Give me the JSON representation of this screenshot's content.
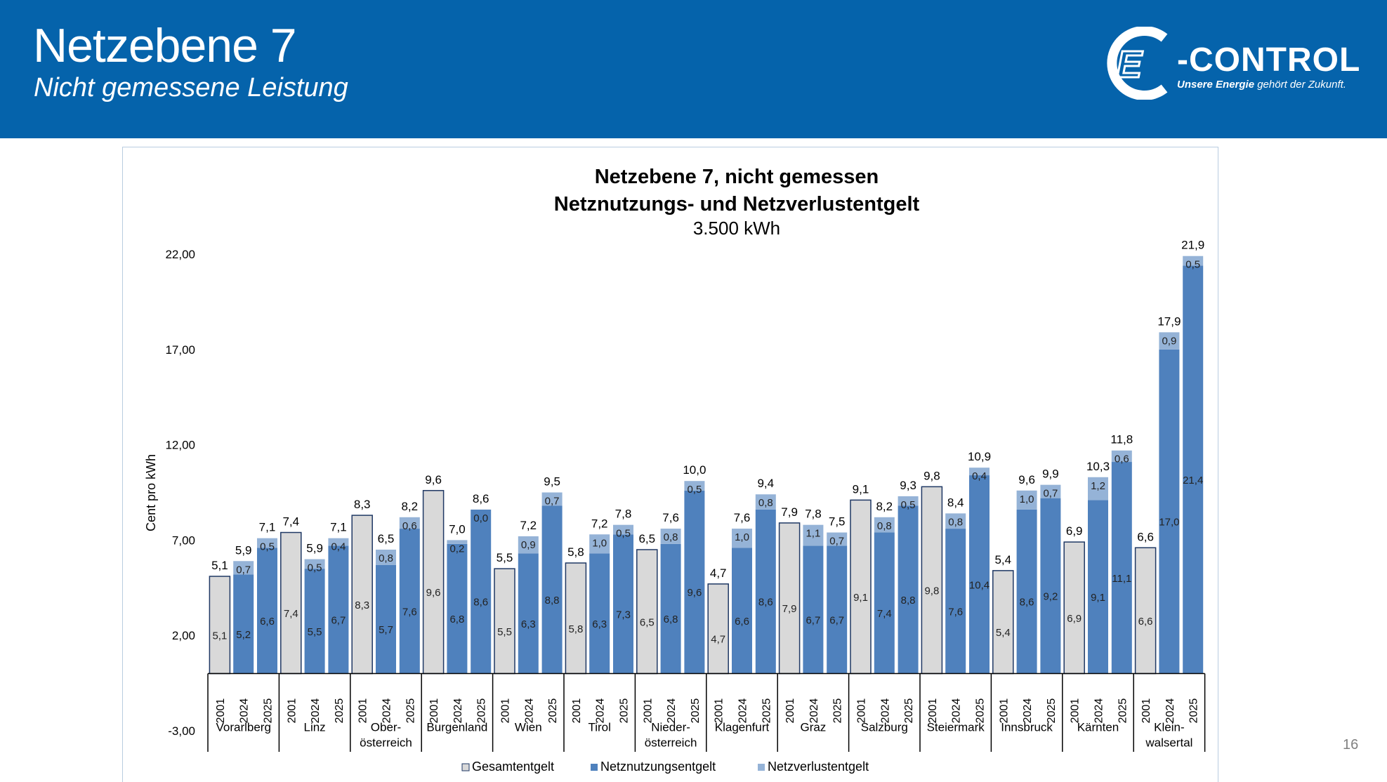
{
  "slide": {
    "title": "Netzebene 7",
    "subtitle": "Nicht gemessene Leistung",
    "page_number": "16"
  },
  "logo": {
    "wordmark": "-CONTROL",
    "letter": "E",
    "slogan_bold": "Unsere Energie",
    "slogan_rest": " gehört der Zukunft."
  },
  "colors": {
    "header_bg": "#0563ab",
    "gesamt": "#d9d9d9",
    "netznutzung": "#4f81bd",
    "netzverlust": "#95b3d7"
  },
  "chart_data": {
    "type": "bar",
    "title": "Netzebene 7, nicht gemessen",
    "title_line2": "Netznutzungs- und Netzverlustentgelt",
    "subtitle": "3.500 kWh",
    "ylabel": "Cent pro kWh",
    "xlabel": "",
    "ylim": [
      -3,
      22
    ],
    "yticks": [
      "22,00",
      "17,00",
      "12,00",
      "7,00",
      "2,00",
      "-3,00"
    ],
    "ytick_values": [
      22,
      17,
      12,
      7,
      2,
      -3
    ],
    "grid": false,
    "legend_position": "bottom",
    "series": [
      {
        "name": "Gesamtentgelt",
        "color": "#d9d9d9"
      },
      {
        "name": "Netznutzungsentgelt",
        "color": "#4f81bd"
      },
      {
        "name": "Netzverlustentgelt",
        "color": "#95b3d7"
      }
    ],
    "groups": [
      {
        "label": [
          "Vorarlberg"
        ],
        "bars": [
          {
            "year": "2001",
            "gesamt": 5.1,
            "gesamt_label": "5,1",
            "total_label": "5,1"
          },
          {
            "year": "2024",
            "netz": 5.2,
            "netz_label": "5,2",
            "verlust": 0.7,
            "verlust_label": "0,7",
            "total_label": "5,9"
          },
          {
            "year": "2025",
            "netz": 6.6,
            "netz_label": "6,6",
            "verlust": 0.5,
            "verlust_label": "0,5",
            "total_label": "7,1"
          }
        ]
      },
      {
        "label": [
          "Linz"
        ],
        "bars": [
          {
            "year": "2001",
            "gesamt": 7.4,
            "gesamt_label": "7,4",
            "total_label": "7,4"
          },
          {
            "year": "2024",
            "netz": 5.5,
            "netz_label": "5,5",
            "verlust": 0.5,
            "verlust_label": "0,5",
            "total_label": "5,9"
          },
          {
            "year": "2025",
            "netz": 6.7,
            "netz_label": "6,7",
            "verlust": 0.4,
            "verlust_label": "0,4",
            "total_label": "7,1"
          }
        ]
      },
      {
        "label": [
          "Ober-",
          "österreich"
        ],
        "bars": [
          {
            "year": "2001",
            "gesamt": 8.3,
            "gesamt_label": "8,3",
            "total_label": "8,3"
          },
          {
            "year": "2024",
            "netz": 5.7,
            "netz_label": "5,7",
            "verlust": 0.8,
            "verlust_label": "0,8",
            "total_label": "6,5"
          },
          {
            "year": "2025",
            "netz": 7.6,
            "netz_label": "7,6",
            "verlust": 0.6,
            "verlust_label": "0,6",
            "total_label": "8,2"
          }
        ]
      },
      {
        "label": [
          "Burgenland"
        ],
        "bars": [
          {
            "year": "2001",
            "gesamt": 9.6,
            "gesamt_label": "9,6",
            "total_label": "9,6"
          },
          {
            "year": "2024",
            "netz": 6.8,
            "netz_label": "6,8",
            "verlust": 0.2,
            "verlust_label": "0,2",
            "total_label": "7,0"
          },
          {
            "year": "2025",
            "netz": 8.6,
            "netz_label": "8,6",
            "verlust": 0.0,
            "verlust_label": "0,0",
            "total_label": "8,6"
          }
        ]
      },
      {
        "label": [
          "Wien"
        ],
        "bars": [
          {
            "year": "2001",
            "gesamt": 5.5,
            "gesamt_label": "5,5",
            "total_label": "5,5"
          },
          {
            "year": "2024",
            "netz": 6.3,
            "netz_label": "6,3",
            "verlust": 0.9,
            "verlust_label": "0,9",
            "total_label": "7,2"
          },
          {
            "year": "2025",
            "netz": 8.8,
            "netz_label": "8,8",
            "verlust": 0.7,
            "verlust_label": "0,7",
            "total_label": "9,5"
          }
        ]
      },
      {
        "label": [
          "Tirol"
        ],
        "bars": [
          {
            "year": "2001",
            "gesamt": 5.8,
            "gesamt_label": "5,8",
            "total_label": "5,8"
          },
          {
            "year": "2024",
            "netz": 6.3,
            "netz_label": "6,3",
            "verlust": 1.0,
            "verlust_label": "1,0",
            "total_label": "7,2"
          },
          {
            "year": "2025",
            "netz": 7.3,
            "netz_label": "7,3",
            "verlust": 0.5,
            "verlust_label": "0,5",
            "total_label": "7,8"
          }
        ]
      },
      {
        "label": [
          "Nieder-",
          "österreich"
        ],
        "bars": [
          {
            "year": "2001",
            "gesamt": 6.5,
            "gesamt_label": "6,5",
            "total_label": "6,5"
          },
          {
            "year": "2024",
            "netz": 6.8,
            "netz_label": "6,8",
            "verlust": 0.8,
            "verlust_label": "0,8",
            "total_label": "7,6"
          },
          {
            "year": "2025",
            "netz": 9.6,
            "netz_label": "9,6",
            "verlust": 0.5,
            "verlust_label": "0,5",
            "total_label": "10,0"
          }
        ]
      },
      {
        "label": [
          "Klagenfurt"
        ],
        "bars": [
          {
            "year": "2001",
            "gesamt": 4.7,
            "gesamt_label": "4,7",
            "total_label": "4,7"
          },
          {
            "year": "2024",
            "netz": 6.6,
            "netz_label": "6,6",
            "verlust": 1.0,
            "verlust_label": "1,0",
            "total_label": "7,6"
          },
          {
            "year": "2025",
            "netz": 8.6,
            "netz_label": "8,6",
            "verlust": 0.8,
            "verlust_label": "0,8",
            "total_label": "9,4"
          }
        ]
      },
      {
        "label": [
          "Graz"
        ],
        "bars": [
          {
            "year": "2001",
            "gesamt": 7.9,
            "gesamt_label": "7,9",
            "total_label": "7,9"
          },
          {
            "year": "2024",
            "netz": 6.7,
            "netz_label": "6,7",
            "verlust": 1.1,
            "verlust_label": "1,1",
            "total_label": "7,8"
          },
          {
            "year": "2025",
            "netz": 6.7,
            "netz_label": "6,7",
            "verlust": 0.7,
            "verlust_label": "0,7",
            "total_label": "7,5"
          }
        ]
      },
      {
        "label": [
          "Salzburg"
        ],
        "bars": [
          {
            "year": "2001",
            "gesamt": 9.1,
            "gesamt_label": "9,1",
            "total_label": "9,1"
          },
          {
            "year": "2024",
            "netz": 7.4,
            "netz_label": "7,4",
            "verlust": 0.8,
            "verlust_label": "0,8",
            "total_label": "8,2"
          },
          {
            "year": "2025",
            "netz": 8.8,
            "netz_label": "8,8",
            "verlust": 0.5,
            "verlust_label": "0,5",
            "total_label": "9,3"
          }
        ]
      },
      {
        "label": [
          "Steiermark"
        ],
        "bars": [
          {
            "year": "2001",
            "gesamt": 9.8,
            "gesamt_label": "9,8",
            "total_label": "9,8"
          },
          {
            "year": "2024",
            "netz": 7.6,
            "netz_label": "7,6",
            "verlust": 0.8,
            "verlust_label": "0,8",
            "total_label": "8,4"
          },
          {
            "year": "2025",
            "netz": 10.4,
            "netz_label": "10,4",
            "verlust": 0.4,
            "verlust_label": "0,4",
            "total_label": "10,9"
          }
        ]
      },
      {
        "label": [
          "Innsbruck"
        ],
        "bars": [
          {
            "year": "2001",
            "gesamt": 5.4,
            "gesamt_label": "5,4",
            "total_label": "5,4"
          },
          {
            "year": "2024",
            "netz": 8.6,
            "netz_label": "8,6",
            "verlust": 1.0,
            "verlust_label": "1,0",
            "total_label": "9,6"
          },
          {
            "year": "2025",
            "netz": 9.2,
            "netz_label": "9,2",
            "verlust": 0.7,
            "verlust_label": "0,7",
            "total_label": "9,9"
          }
        ]
      },
      {
        "label": [
          "Kärnten"
        ],
        "bars": [
          {
            "year": "2001",
            "gesamt": 6.9,
            "gesamt_label": "6,9",
            "total_label": "6,9"
          },
          {
            "year": "2024",
            "netz": 9.1,
            "netz_label": "9,1",
            "verlust": 1.2,
            "verlust_label": "1,2",
            "total_label": "10,3"
          },
          {
            "year": "2025",
            "netz": 11.1,
            "netz_label": "11,1",
            "verlust": 0.6,
            "verlust_label": "0,6",
            "total_label": "11,8"
          }
        ]
      },
      {
        "label": [
          "Klein-",
          "walsertal"
        ],
        "bars": [
          {
            "year": "2001",
            "gesamt": 6.6,
            "gesamt_label": "6,6",
            "total_label": "6,6"
          },
          {
            "year": "2024",
            "netz": 17.0,
            "netz_label": "17,0",
            "verlust": 0.9,
            "verlust_label": "0,9",
            "total_label": "17,9"
          },
          {
            "year": "2025",
            "netz": 21.4,
            "netz_label": "21,4",
            "verlust": 0.5,
            "verlust_label": "0,5",
            "total_label": "21,9"
          }
        ]
      }
    ]
  }
}
